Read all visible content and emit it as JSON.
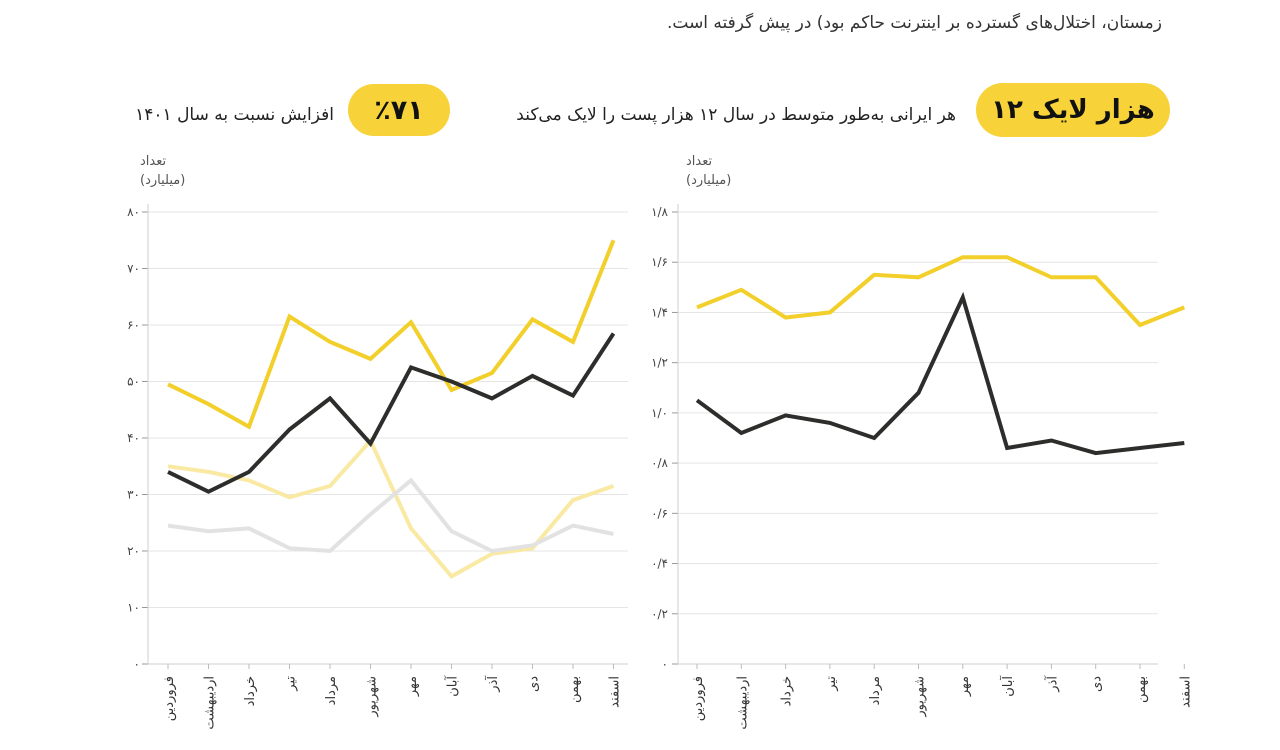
{
  "intro": {
    "line1": "",
    "line2": "زمستان، اختلال‌های گسترده بر اینترنت حاکم بود) در پیش گرفته است."
  },
  "highlight": {
    "main_value": "۱۲ هزار لایک",
    "main_text": "هر ایرانی به‌طور متوسط در سال ۱۲ هزار پست را لایک می‌کند",
    "pct_value": "٪۷۱",
    "pct_text": "افزایش نسبت به سال ۱۴۰۱"
  },
  "colors": {
    "yellow": "#f2cf2a",
    "black": "#2d2d2b",
    "light_yellow": "#f9e9a3",
    "light_gray": "#e2e2e2",
    "grid": "#e5e5e5",
    "pill": "#f7d238"
  },
  "chart_data": [
    {
      "type": "line",
      "position": "left",
      "ylabel": [
        "تعداد",
        "(میلیارد)"
      ],
      "ylim": [
        0,
        80
      ],
      "yticks": [
        "۰",
        "۱۰",
        "۲۰",
        "۳۰",
        "۴۰",
        "۵۰",
        "۶۰",
        "۷۰",
        "۸۰"
      ],
      "grid": true,
      "categories": [
        "فروردین",
        "اردیبهشت",
        "خرداد",
        "تیر",
        "مرداد",
        "شهریور",
        "مهر",
        "آبان",
        "آذر",
        "دی",
        "بهمن",
        "اسفند"
      ],
      "series": [
        {
          "color": "#f9e9a3",
          "values": [
            35,
            34,
            32.5,
            29.5,
            31.5,
            39.5,
            24,
            15.5,
            19.5,
            20.5,
            29,
            31.5
          ]
        },
        {
          "color": "#e2e2e2",
          "values": [
            24.5,
            23.5,
            24,
            20.5,
            20,
            26.5,
            32.5,
            23.5,
            20,
            21,
            24.5,
            23
          ]
        },
        {
          "color": "#f2cf2a",
          "values": [
            49.5,
            46,
            42,
            61.5,
            57,
            54,
            60.5,
            48.5,
            51.5,
            61,
            57,
            75
          ]
        },
        {
          "color": "#2d2d2b",
          "values": [
            34,
            30.5,
            34,
            41.5,
            47,
            39,
            52.5,
            50,
            47,
            51,
            47.5,
            58.5
          ]
        }
      ]
    },
    {
      "type": "line",
      "position": "right",
      "ylabel": [
        "تعداد",
        "(میلیارد)"
      ],
      "ylim": [
        0,
        1.8
      ],
      "yticks": [
        "۰",
        "۰/۲",
        "۰/۴",
        "۰/۶",
        "۰/۸",
        "۱/۰",
        "۱/۲",
        "۱/۴",
        "۱/۶",
        "۱/۸"
      ],
      "grid": true,
      "categories": [
        "فروردین",
        "اردیبهشت",
        "خرداد",
        "تیر",
        "مرداد",
        "شهریور",
        "مهر",
        "آبان",
        "آذر",
        "دی",
        "بهمن",
        "اسفند"
      ],
      "series": [
        {
          "color": "#f2cf2a",
          "values": [
            1.42,
            1.49,
            1.38,
            1.4,
            1.55,
            1.54,
            1.62,
            1.62,
            1.54,
            1.54,
            1.35,
            1.42
          ]
        },
        {
          "color": "#2d2d2b",
          "values": [
            1.05,
            0.92,
            0.99,
            0.96,
            0.9,
            1.08,
            1.46,
            0.86,
            0.89,
            0.84,
            0.86,
            0.88
          ]
        }
      ]
    }
  ]
}
